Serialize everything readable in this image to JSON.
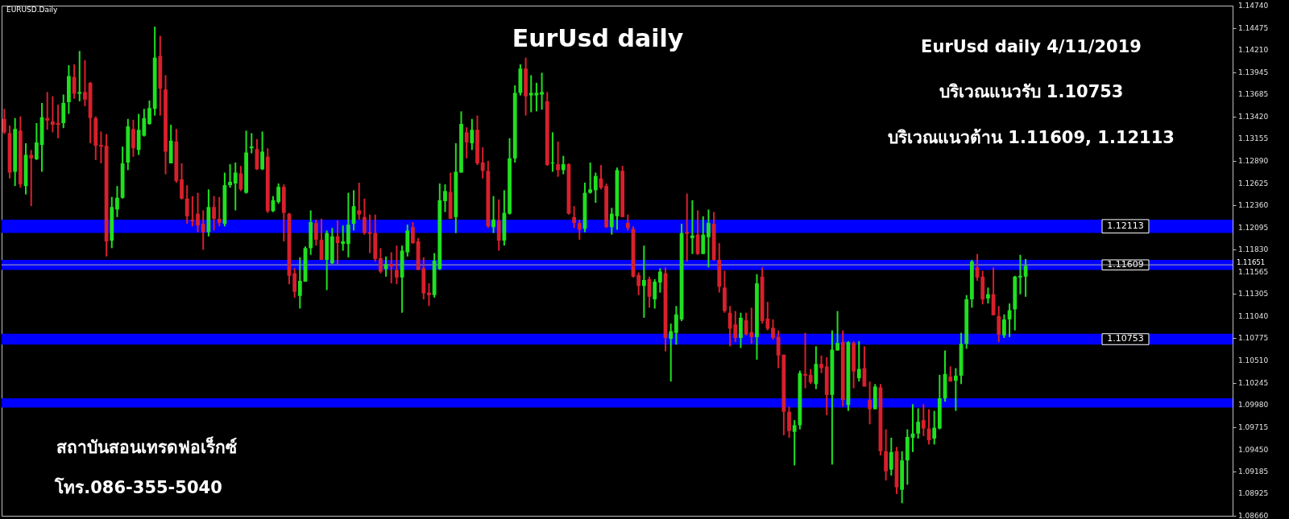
{
  "chart_data": {
    "type": "candlestick",
    "title": "EurUsd daily",
    "annotations": [
      "EURUSD.Daily",
      "EurUsd daily 4/11/2019",
      "บริเวณแนวรับ 1.10753",
      "บริเวณแนวต้าน 1.11609, 1.12113",
      "สถาบันสอนเทรดฟอเร็กซ์",
      "โทร.086-355-5040"
    ],
    "categories": [
      null,
      null,
      null,
      null,
      null,
      null,
      null,
      null,
      null,
      null,
      null,
      null,
      null,
      null,
      null,
      null,
      null,
      null,
      null,
      null,
      null,
      null,
      null,
      null,
      null,
      null,
      null,
      null,
      null,
      null,
      null,
      null,
      null,
      null,
      null,
      null,
      null,
      null,
      null,
      null,
      null,
      null,
      null,
      null,
      null,
      null,
      null,
      null,
      null,
      null,
      null,
      null,
      null,
      null,
      null,
      null,
      null,
      null,
      null,
      null,
      null,
      null,
      null,
      null,
      null,
      null,
      null,
      null,
      null,
      null,
      null,
      null,
      null,
      null,
      null,
      null,
      null,
      null,
      null,
      null,
      null,
      null,
      null,
      null,
      null,
      null,
      null,
      null,
      null,
      null,
      null,
      null,
      null,
      null,
      null,
      null,
      null,
      null,
      null,
      null,
      null,
      null,
      null,
      null,
      null,
      null,
      null,
      null,
      null,
      null,
      null,
      null,
      null,
      null,
      null,
      null,
      null,
      null,
      null,
      null,
      null,
      null,
      null,
      null,
      null,
      null,
      null,
      null,
      null,
      null,
      null,
      null,
      null,
      null,
      null,
      null,
      null,
      null,
      null,
      null,
      null,
      null,
      null,
      null,
      null,
      null,
      null,
      null,
      null,
      null,
      null,
      null,
      null,
      null,
      null,
      null,
      null,
      null,
      null,
      null,
      null,
      null,
      null,
      null,
      null,
      null,
      null,
      null,
      null,
      null,
      null,
      null,
      null,
      null,
      null,
      null,
      null,
      null,
      null,
      null,
      null,
      null,
      null,
      null,
      null,
      null,
      null,
      null,
      null,
      null,
      null,
      null,
      null,
      null,
      null,
      null,
      null,
      null,
      null,
      null,
      null,
      null,
      null,
      null,
      null,
      null,
      null,
      null,
      null,
      null,
      null,
      null,
      null,
      null,
      null,
      null,
      null,
      null,
      null,
      null,
      null,
      null,
      null,
      null,
      null,
      null,
      null,
      null,
      null
    ],
    "ohlc": [
      [
        1.1339,
        1.1351,
        1.1321,
        1.1323
      ],
      [
        1.1322,
        1.1331,
        1.1268,
        1.1275
      ],
      [
        1.1276,
        1.134,
        1.1259,
        1.1327
      ],
      [
        1.1325,
        1.1342,
        1.1257,
        1.1261
      ],
      [
        1.1259,
        1.131,
        1.1249,
        1.1296
      ],
      [
        1.1296,
        1.1302,
        1.1235,
        1.1292
      ],
      [
        1.1291,
        1.1334,
        1.129,
        1.1311
      ],
      [
        1.1308,
        1.1358,
        1.1276,
        1.1341
      ],
      [
        1.134,
        1.1371,
        1.1326,
        1.1337
      ],
      [
        1.1336,
        1.1366,
        1.1323,
        1.1332
      ],
      [
        1.1334,
        1.1356,
        1.1316,
        1.1332
      ],
      [
        1.1334,
        1.1368,
        1.1328,
        1.1358
      ],
      [
        1.1359,
        1.1403,
        1.1345,
        1.139
      ],
      [
        1.1389,
        1.1404,
        1.1363,
        1.1369
      ],
      [
        1.1369,
        1.142,
        1.136,
        1.1371
      ],
      [
        1.1371,
        1.1409,
        1.1354,
        1.1362
      ],
      [
        1.1382,
        1.1383,
        1.131,
        1.134
      ],
      [
        1.134,
        1.1342,
        1.129,
        1.1307
      ],
      [
        1.1308,
        1.1324,
        1.1286,
        1.1306
      ],
      [
        1.1307,
        1.1321,
        1.1175,
        1.1193
      ],
      [
        1.1194,
        1.1246,
        1.1185,
        1.1234
      ],
      [
        1.1231,
        1.1259,
        1.1222,
        1.1245
      ],
      [
        1.1245,
        1.1306,
        1.1244,
        1.1286
      ],
      [
        1.1287,
        1.1339,
        1.1278,
        1.133
      ],
      [
        1.1327,
        1.1338,
        1.1294,
        1.1304
      ],
      [
        1.1302,
        1.1345,
        1.1296,
        1.1326
      ],
      [
        1.1319,
        1.1351,
        1.1318,
        1.134
      ],
      [
        1.1333,
        1.1361,
        1.1332,
        1.1352
      ],
      [
        1.1351,
        1.1449,
        1.1343,
        1.1412
      ],
      [
        1.1414,
        1.1438,
        1.1343,
        1.1375
      ],
      [
        1.1374,
        1.1391,
        1.1273,
        1.13
      ],
      [
        1.1286,
        1.1332,
        1.1286,
        1.1313
      ],
      [
        1.1312,
        1.1327,
        1.1263,
        1.1265
      ],
      [
        1.1267,
        1.1286,
        1.1243,
        1.1244
      ],
      [
        1.1244,
        1.126,
        1.1214,
        1.1223
      ],
      [
        1.1219,
        1.1247,
        1.1211,
        1.1217
      ],
      [
        1.1226,
        1.1251,
        1.1204,
        1.1212
      ],
      [
        1.1214,
        1.123,
        1.1183,
        1.1204
      ],
      [
        1.1204,
        1.1255,
        1.1199,
        1.1234
      ],
      [
        1.1234,
        1.1247,
        1.1206,
        1.122
      ],
      [
        1.122,
        1.1246,
        1.1211,
        1.1215
      ],
      [
        1.1214,
        1.1275,
        1.1211,
        1.126
      ],
      [
        1.126,
        1.1285,
        1.1257,
        1.1264
      ],
      [
        1.1262,
        1.1287,
        1.123,
        1.1275
      ],
      [
        1.1274,
        1.1283,
        1.1253,
        1.1255
      ],
      [
        1.1251,
        1.1325,
        1.125,
        1.1299
      ],
      [
        1.1304,
        1.1322,
        1.1298,
        1.1306
      ],
      [
        1.1303,
        1.1315,
        1.1278,
        1.1279
      ],
      [
        1.1279,
        1.1324,
        1.1278,
        1.13
      ],
      [
        1.1294,
        1.1304,
        1.1227,
        1.1229
      ],
      [
        1.1229,
        1.1247,
        1.1228,
        1.1242
      ],
      [
        1.124,
        1.1262,
        1.1238,
        1.1258
      ],
      [
        1.1258,
        1.1261,
        1.1193,
        1.1227
      ],
      [
        1.1226,
        1.1227,
        1.1142,
        1.1152
      ],
      [
        1.1155,
        1.1161,
        1.1126,
        1.1133
      ],
      [
        1.1128,
        1.1174,
        1.1113,
        1.1146
      ],
      [
        1.1145,
        1.1187,
        1.1145,
        1.1185
      ],
      [
        1.1185,
        1.123,
        1.1177,
        1.1216
      ],
      [
        1.1215,
        1.1219,
        1.1188,
        1.1195
      ],
      [
        1.1195,
        1.122,
        1.1171,
        1.1171
      ],
      [
        1.1171,
        1.1206,
        1.1135,
        1.1203
      ],
      [
        1.1167,
        1.1209,
        1.1166,
        1.1199
      ],
      [
        1.1199,
        1.1218,
        1.1166,
        1.1191
      ],
      [
        1.119,
        1.1212,
        1.1182,
        1.1193
      ],
      [
        1.119,
        1.1251,
        1.1174,
        1.1213
      ],
      [
        1.1214,
        1.1254,
        1.1206,
        1.1235
      ],
      [
        1.123,
        1.1263,
        1.1219,
        1.1225
      ],
      [
        1.1222,
        1.1244,
        1.1201,
        1.1203
      ],
      [
        1.1204,
        1.1225,
        1.1179,
        1.1202
      ],
      [
        1.1203,
        1.1225,
        1.1169,
        1.1172
      ],
      [
        1.1173,
        1.1185,
        1.1155,
        1.1157
      ],
      [
        1.116,
        1.1175,
        1.1151,
        1.1166
      ],
      [
        1.1166,
        1.118,
        1.1143,
        1.1163
      ],
      [
        1.1159,
        1.1188,
        1.1142,
        1.115
      ],
      [
        1.115,
        1.1188,
        1.1108,
        1.1182
      ],
      [
        1.118,
        1.1213,
        1.1175,
        1.1206
      ],
      [
        1.121,
        1.1216,
        1.119,
        1.1191
      ],
      [
        1.1193,
        1.1197,
        1.1159,
        1.1159
      ],
      [
        1.1161,
        1.1174,
        1.1124,
        1.1131
      ],
      [
        1.1132,
        1.1143,
        1.1116,
        1.1129
      ],
      [
        1.1129,
        1.1179,
        1.1126,
        1.117
      ],
      [
        1.116,
        1.1262,
        1.1159,
        1.1242
      ],
      [
        1.1241,
        1.1261,
        1.1228,
        1.1253
      ],
      [
        1.1252,
        1.1275,
        1.122,
        1.122
      ],
      [
        1.1222,
        1.131,
        1.1203,
        1.1276
      ],
      [
        1.1275,
        1.1348,
        1.1275,
        1.1333
      ],
      [
        1.1323,
        1.1329,
        1.1292,
        1.1311
      ],
      [
        1.131,
        1.1339,
        1.1302,
        1.1326
      ],
      [
        1.1326,
        1.1343,
        1.1284,
        1.1286
      ],
      [
        1.1287,
        1.1305,
        1.1268,
        1.1277
      ],
      [
        1.1277,
        1.1289,
        1.1209,
        1.1211
      ],
      [
        1.121,
        1.1247,
        1.1203,
        1.1219
      ],
      [
        1.1218,
        1.1243,
        1.1182,
        1.1194
      ],
      [
        1.1194,
        1.1254,
        1.1188,
        1.1227
      ],
      [
        1.1226,
        1.1316,
        1.1225,
        1.1292
      ],
      [
        1.1292,
        1.1379,
        1.1287,
        1.137
      ],
      [
        1.137,
        1.1404,
        1.1367,
        1.1399
      ],
      [
        1.1399,
        1.1412,
        1.1343,
        1.1366
      ],
      [
        1.1367,
        1.1391,
        1.1347,
        1.137
      ],
      [
        1.1367,
        1.1382,
        1.1348,
        1.137
      ],
      [
        1.1368,
        1.1394,
        1.135,
        1.1371
      ],
      [
        1.136,
        1.1371,
        1.1283,
        1.1284
      ],
      [
        1.1286,
        1.1323,
        1.1276,
        1.1287
      ],
      [
        1.1285,
        1.1312,
        1.127,
        1.1278
      ],
      [
        1.1278,
        1.1295,
        1.1273,
        1.1285
      ],
      [
        1.1285,
        1.1286,
        1.1225,
        1.1226
      ],
      [
        1.1222,
        1.1235,
        1.1209,
        1.1215
      ],
      [
        1.1215,
        1.1219,
        1.1195,
        1.1207
      ],
      [
        1.1208,
        1.1263,
        1.1204,
        1.1251
      ],
      [
        1.1251,
        1.1287,
        1.125,
        1.1255
      ],
      [
        1.1254,
        1.1275,
        1.1239,
        1.1271
      ],
      [
        1.1268,
        1.1284,
        1.1255,
        1.1257
      ],
      [
        1.1259,
        1.1262,
        1.1209,
        1.121
      ],
      [
        1.121,
        1.1233,
        1.1201,
        1.1226
      ],
      [
        1.1223,
        1.1281,
        1.1207,
        1.1278
      ],
      [
        1.1277,
        1.1283,
        1.1222,
        1.1222
      ],
      [
        1.1215,
        1.1225,
        1.1206,
        1.1209
      ],
      [
        1.1208,
        1.1211,
        1.115,
        1.1151
      ],
      [
        1.1153,
        1.1156,
        1.1129,
        1.114
      ],
      [
        1.114,
        1.1188,
        1.1102,
        1.1147
      ],
      [
        1.1148,
        1.1151,
        1.1114,
        1.1127
      ],
      [
        1.1124,
        1.1148,
        1.1113,
        1.1145
      ],
      [
        1.1144,
        1.1161,
        1.1132,
        1.1157
      ],
      [
        1.1155,
        1.1162,
        1.1062,
        1.1078
      ],
      [
        1.1077,
        1.1095,
        1.1026,
        1.1086
      ],
      [
        1.1084,
        1.1116,
        1.107,
        1.1106
      ],
      [
        1.11,
        1.1214,
        1.1098,
        1.1203
      ],
      [
        1.1204,
        1.125,
        1.1169,
        1.1202
      ],
      [
        1.1197,
        1.1242,
        1.1178,
        1.12
      ],
      [
        1.1201,
        1.123,
        1.1177,
        1.1178
      ],
      [
        1.1178,
        1.1223,
        1.1178,
        1.1201
      ],
      [
        1.1198,
        1.1231,
        1.1162,
        1.1215
      ],
      [
        1.1214,
        1.1228,
        1.117,
        1.1171
      ],
      [
        1.1171,
        1.1191,
        1.1132,
        1.1139
      ],
      [
        1.1138,
        1.1158,
        1.1108,
        1.111
      ],
      [
        1.1108,
        1.1116,
        1.1068,
        1.1089
      ],
      [
        1.1094,
        1.111,
        1.1073,
        1.1078
      ],
      [
        1.1078,
        1.1108,
        1.1066,
        1.1102
      ],
      [
        1.1099,
        1.1108,
        1.1081,
        1.1082
      ],
      [
        1.1085,
        1.1114,
        1.1071,
        1.1079
      ],
      [
        1.1079,
        1.1154,
        1.1052,
        1.1143
      ],
      [
        1.1151,
        1.1162,
        1.1095,
        1.1098
      ],
      [
        1.1101,
        1.1121,
        1.1087,
        1.1089
      ],
      [
        1.109,
        1.11,
        1.1076,
        1.1078
      ],
      [
        1.1079,
        1.1087,
        1.1042,
        1.1057
      ],
      [
        1.1058,
        1.1058,
        1.0962,
        1.099
      ],
      [
        1.099,
        1.0996,
        1.0959,
        1.0967
      ],
      [
        1.0966,
        1.098,
        1.0926,
        1.0974
      ],
      [
        1.0974,
        1.1039,
        1.0969,
        1.1036
      ],
      [
        1.1035,
        1.1084,
        1.1018,
        1.1033
      ],
      [
        1.1034,
        1.1041,
        1.1023,
        1.1025
      ],
      [
        1.1023,
        1.1068,
        1.1017,
        1.1047
      ],
      [
        1.1047,
        1.1057,
        1.1036,
        1.1042
      ],
      [
        1.1044,
        1.1055,
        1.0986,
        1.101
      ],
      [
        1.101,
        1.1087,
        1.0927,
        1.1064
      ],
      [
        1.1063,
        1.111,
        1.1063,
        1.1072
      ],
      [
        1.1073,
        1.1087,
        1.0996,
        1.1004
      ],
      [
        1.0998,
        1.1074,
        1.0991,
        1.1073
      ],
      [
        1.1072,
        1.1074,
        1.1018,
        1.1038
      ],
      [
        1.103,
        1.1074,
        1.1026,
        1.1041
      ],
      [
        1.1042,
        1.1068,
        1.102,
        1.102
      ],
      [
        1.1004,
        1.1026,
        1.0975,
        1.0993
      ],
      [
        1.0993,
        1.1023,
        1.0993,
        1.102
      ],
      [
        1.1019,
        1.1023,
        1.0938,
        1.0943
      ],
      [
        1.0943,
        1.0969,
        1.0908,
        1.0919
      ],
      [
        1.0921,
        1.0959,
        1.0914,
        1.0942
      ],
      [
        1.0943,
        1.0948,
        1.0892,
        1.09
      ],
      [
        1.0897,
        1.0943,
        1.0881,
        1.0932
      ],
      [
        1.0932,
        1.0969,
        1.0903,
        1.096
      ],
      [
        1.0959,
        1.0999,
        1.0942,
        1.0964
      ],
      [
        1.0964,
        1.0994,
        1.0958,
        1.0978
      ],
      [
        1.098,
        1.0999,
        1.0961,
        1.097
      ],
      [
        1.097,
        1.0993,
        1.0951,
        1.0956
      ],
      [
        1.0958,
        1.0991,
        1.0951,
        1.0971
      ],
      [
        1.097,
        1.1034,
        1.0969,
        1.1006
      ],
      [
        1.1006,
        1.1063,
        1.1002,
        1.1035
      ],
      [
        1.1032,
        1.1044,
        1.1026,
        1.1026
      ],
      [
        1.1027,
        1.1042,
        1.0991,
        1.1033
      ],
      [
        1.1033,
        1.1084,
        1.1023,
        1.1071
      ],
      [
        1.1071,
        1.1129,
        1.1065,
        1.1124
      ],
      [
        1.1124,
        1.1171,
        1.1114,
        1.1169
      ],
      [
        1.1162,
        1.1178,
        1.1146,
        1.115
      ],
      [
        1.1151,
        1.1158,
        1.1118,
        1.1124
      ],
      [
        1.1125,
        1.1138,
        1.1119,
        1.113
      ],
      [
        1.113,
        1.1162,
        1.1105,
        1.1105
      ],
      [
        1.1104,
        1.1116,
        1.1073,
        1.1082
      ],
      [
        1.1081,
        1.1106,
        1.1078,
        1.11
      ],
      [
        1.11,
        1.1119,
        1.1079,
        1.1111
      ],
      [
        1.1112,
        1.1152,
        1.1087,
        1.1151
      ],
      [
        1.115,
        1.1177,
        1.113,
        1.1152
      ],
      [
        1.1151,
        1.1172,
        1.1127,
        1.1164
      ],
      null,
      null,
      null,
      null,
      null,
      null,
      null,
      null,
      null,
      null,
      null,
      null,
      null,
      null,
      null,
      null,
      null,
      null,
      null,
      null,
      null,
      null,
      null,
      null,
      null,
      null,
      null,
      null,
      null,
      null,
      null,
      null,
      null,
      null,
      null,
      null,
      null,
      null
    ],
    "ylim": [
      1.0866,
      1.1474
    ],
    "yticks": [
      {
        "value": 1.1474,
        "label": "1.14740"
      },
      1.14475,
      {
        "value": 1.1421,
        "label": "1.14210"
      },
      1.13945,
      1.13685,
      {
        "value": 1.1342,
        "label": "1.13420"
      },
      1.13155,
      {
        "value": 1.1289,
        "label": "1.12890"
      },
      1.12625,
      {
        "value": 1.1236,
        "label": "1.12360"
      },
      1.12095,
      {
        "value": 1.1183,
        "label": "1.11830"
      },
      1.11565,
      1.11305,
      {
        "value": 1.1104,
        "label": "1.11040"
      },
      1.10775,
      {
        "value": 1.1051,
        "label": "1.10510"
      },
      1.10245,
      {
        "value": 1.0998,
        "label": "1.09980"
      },
      1.09715,
      {
        "value": 1.0945,
        "label": "1.09450"
      },
      1.09185,
      1.08925,
      {
        "value": 1.0866,
        "label": "1.08660"
      }
    ],
    "bands": [
      {
        "axis": "y",
        "from": 1.1203,
        "to": 1.1219,
        "label": "1.12113",
        "color": "#0000ff"
      },
      {
        "axis": "y",
        "from": 1.1159,
        "to": 1.1171,
        "label": "1.11609",
        "color": "#0000ff"
      },
      {
        "axis": "y",
        "from": 1.107,
        "to": 1.1083,
        "label": "1.10753",
        "color": "#0000ff"
      },
      {
        "axis": "y",
        "from": 1.0995,
        "to": 1.1006,
        "color": "#0000ff"
      }
    ],
    "ref_lines": [
      {
        "axis": "y",
        "value": 1.11651,
        "label": "1.11651",
        "color": "#b0b0b0"
      }
    ],
    "grid": false
  }
}
